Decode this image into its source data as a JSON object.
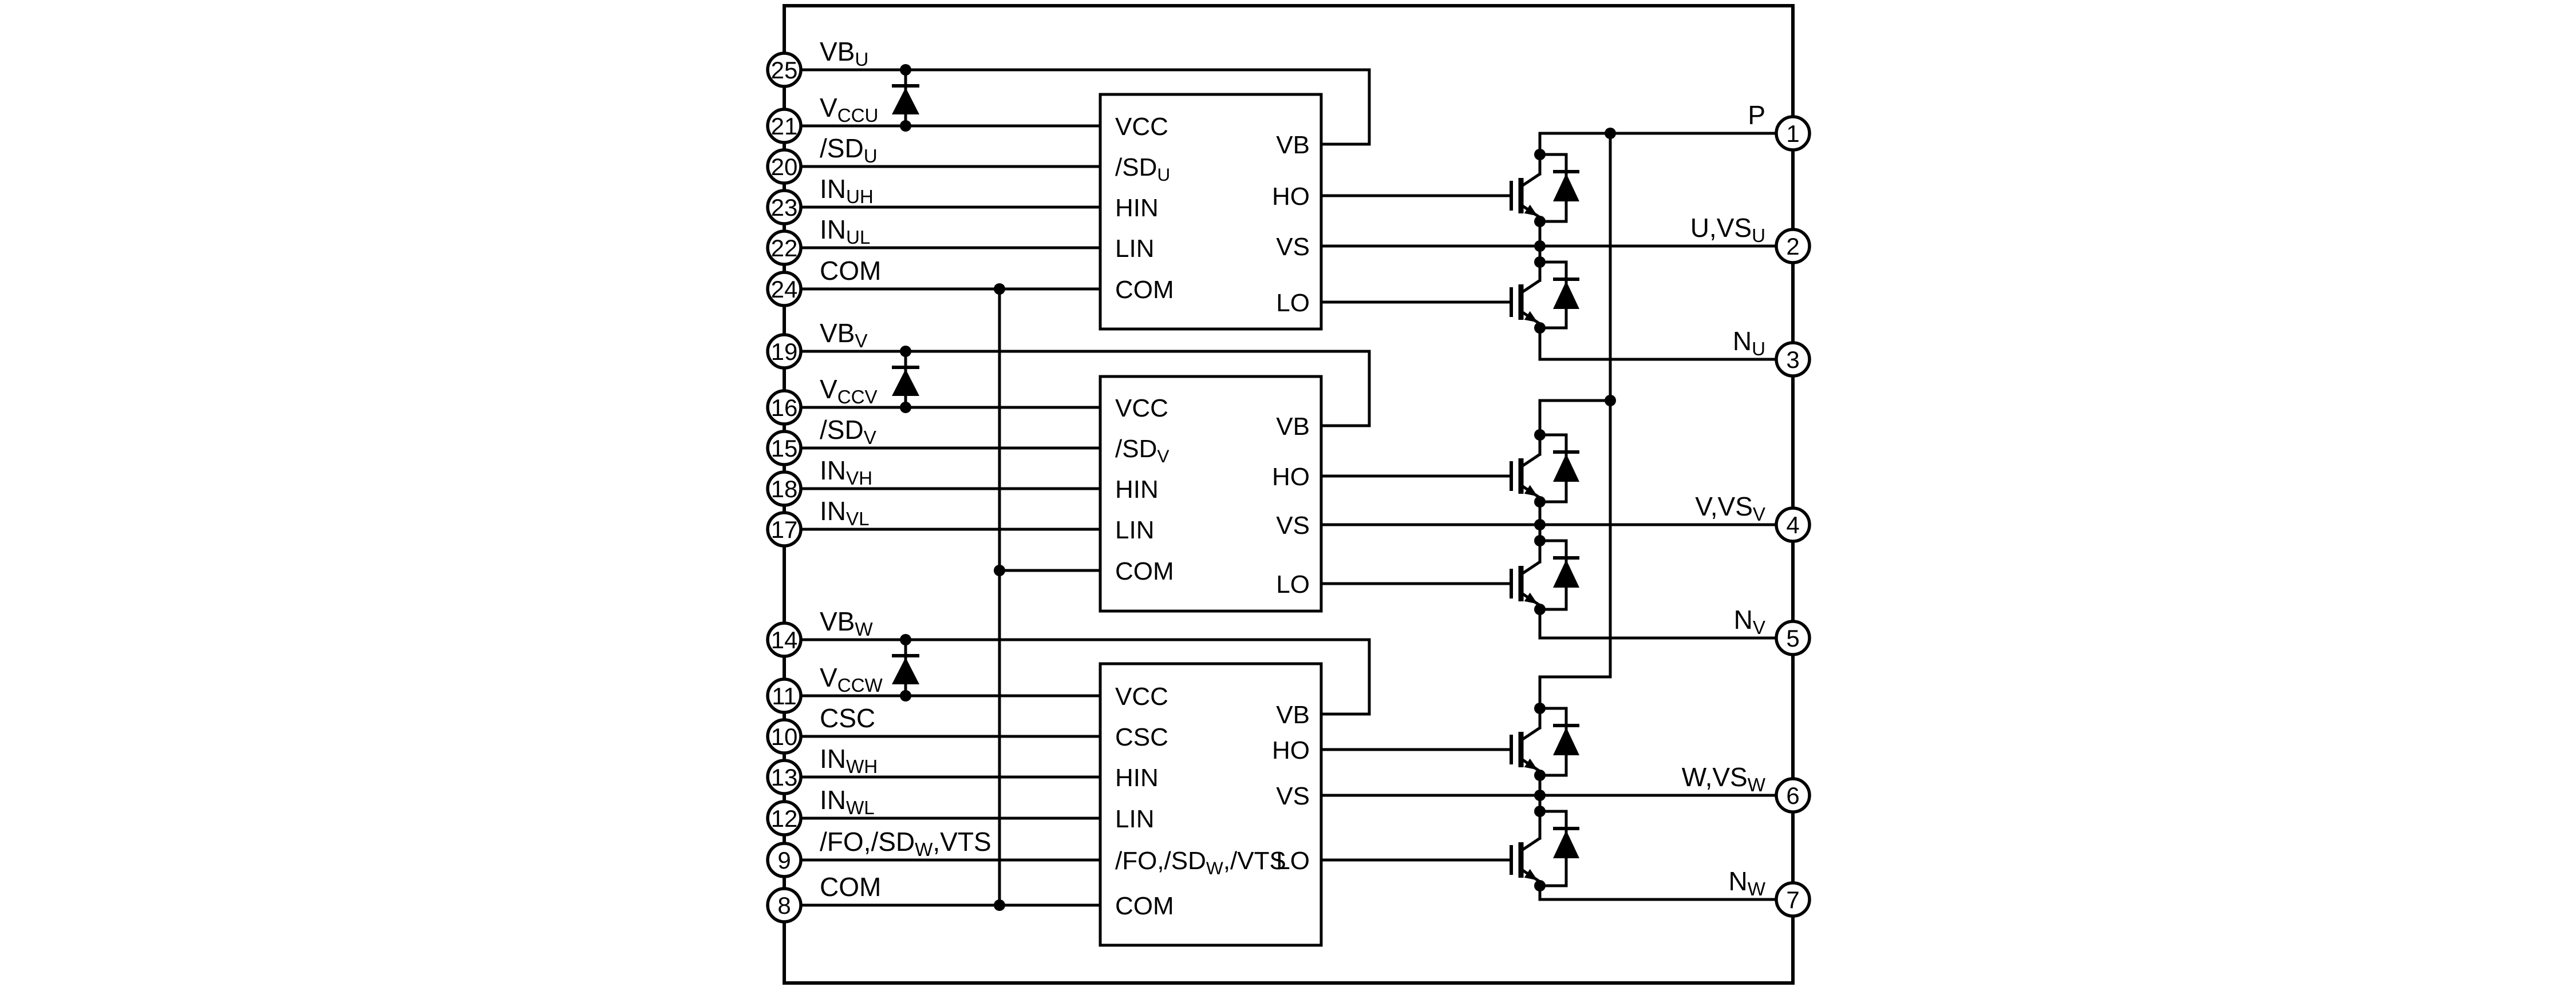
{
  "colors": {
    "background": "#ffffff",
    "line": "#000000"
  },
  "left_pins": [
    {
      "number": "25",
      "label": {
        "parts": [
          {
            "t": "VB"
          },
          {
            "t": "U",
            "sub": true
          }
        ]
      }
    },
    {
      "number": "21",
      "label": {
        "parts": [
          {
            "t": "V"
          },
          {
            "t": "CCU",
            "sub": true
          }
        ]
      }
    },
    {
      "number": "20",
      "label": {
        "parts": [
          {
            "t": "/SD"
          },
          {
            "t": "U",
            "sub": true
          }
        ]
      }
    },
    {
      "number": "23",
      "label": {
        "parts": [
          {
            "t": "IN"
          },
          {
            "t": "UH",
            "sub": true
          }
        ]
      }
    },
    {
      "number": "22",
      "label": {
        "parts": [
          {
            "t": "IN"
          },
          {
            "t": "UL",
            "sub": true
          }
        ]
      }
    },
    {
      "number": "24",
      "label": {
        "parts": [
          {
            "t": "COM"
          }
        ]
      }
    },
    {
      "number": "19",
      "label": {
        "parts": [
          {
            "t": "VB"
          },
          {
            "t": "V",
            "sub": true
          }
        ]
      }
    },
    {
      "number": "16",
      "label": {
        "parts": [
          {
            "t": "V"
          },
          {
            "t": "CCV",
            "sub": true
          }
        ]
      }
    },
    {
      "number": "15",
      "label": {
        "parts": [
          {
            "t": "/SD"
          },
          {
            "t": "V",
            "sub": true
          }
        ]
      }
    },
    {
      "number": "18",
      "label": {
        "parts": [
          {
            "t": "IN"
          },
          {
            "t": "VH",
            "sub": true
          }
        ]
      }
    },
    {
      "number": "17",
      "label": {
        "parts": [
          {
            "t": "IN"
          },
          {
            "t": "VL",
            "sub": true
          }
        ]
      }
    },
    {
      "number": "14",
      "label": {
        "parts": [
          {
            "t": "VB"
          },
          {
            "t": "W",
            "sub": true
          }
        ]
      }
    },
    {
      "number": "11",
      "label": {
        "parts": [
          {
            "t": "V"
          },
          {
            "t": "CCW",
            "sub": true
          }
        ]
      }
    },
    {
      "number": "10",
      "label": {
        "parts": [
          {
            "t": "CSC"
          }
        ]
      }
    },
    {
      "number": "13",
      "label": {
        "parts": [
          {
            "t": "IN"
          },
          {
            "t": "WH",
            "sub": true
          }
        ]
      }
    },
    {
      "number": "12",
      "label": {
        "parts": [
          {
            "t": "IN"
          },
          {
            "t": "WL",
            "sub": true
          }
        ]
      }
    },
    {
      "number": "9",
      "label": {
        "parts": [
          {
            "t": "/FO,/SD"
          },
          {
            "t": "W",
            "sub": true
          },
          {
            "t": ",VTS"
          }
        ]
      }
    },
    {
      "number": "8",
      "label": {
        "parts": [
          {
            "t": "COM"
          }
        ]
      }
    }
  ],
  "right_pins": [
    {
      "number": "1",
      "label": {
        "parts": [
          {
            "t": "P"
          }
        ]
      }
    },
    {
      "number": "2",
      "label": {
        "parts": [
          {
            "t": "U,VS"
          },
          {
            "t": "U",
            "sub": true
          }
        ]
      }
    },
    {
      "number": "3",
      "label": {
        "parts": [
          {
            "t": "N"
          },
          {
            "t": "U",
            "sub": true
          }
        ]
      }
    },
    {
      "number": "4",
      "label": {
        "parts": [
          {
            "t": "V,VS"
          },
          {
            "t": "V",
            "sub": true
          }
        ]
      }
    },
    {
      "number": "5",
      "label": {
        "parts": [
          {
            "t": "N"
          },
          {
            "t": "V",
            "sub": true
          }
        ]
      }
    },
    {
      "number": "6",
      "label": {
        "parts": [
          {
            "t": "W,VS"
          },
          {
            "t": "W",
            "sub": true
          }
        ]
      }
    },
    {
      "number": "7",
      "label": {
        "parts": [
          {
            "t": "N"
          },
          {
            "t": "W",
            "sub": true
          }
        ]
      }
    }
  ],
  "driver_ics": [
    {
      "left_pins": [
        {
          "parts": [
            {
              "t": "VCC"
            }
          ]
        },
        {
          "parts": [
            {
              "t": "/SD"
            },
            {
              "t": "U",
              "sub": true
            }
          ]
        },
        {
          "parts": [
            {
              "t": "HIN"
            }
          ]
        },
        {
          "parts": [
            {
              "t": "LIN"
            }
          ]
        },
        {
          "parts": [
            {
              "t": "COM"
            }
          ]
        }
      ],
      "right_pins": [
        "VB",
        "HO",
        "VS",
        "LO"
      ]
    },
    {
      "left_pins": [
        {
          "parts": [
            {
              "t": "VCC"
            }
          ]
        },
        {
          "parts": [
            {
              "t": "/SD"
            },
            {
              "t": "V",
              "sub": true
            }
          ]
        },
        {
          "parts": [
            {
              "t": "HIN"
            }
          ]
        },
        {
          "parts": [
            {
              "t": "LIN"
            }
          ]
        },
        {
          "parts": [
            {
              "t": "COM"
            }
          ]
        }
      ],
      "right_pins": [
        "VB",
        "HO",
        "VS",
        "LO"
      ]
    },
    {
      "left_pins": [
        {
          "parts": [
            {
              "t": "VCC"
            }
          ]
        },
        {
          "parts": [
            {
              "t": "CSC"
            }
          ]
        },
        {
          "parts": [
            {
              "t": "HIN"
            }
          ]
        },
        {
          "parts": [
            {
              "t": "LIN"
            }
          ]
        },
        {
          "parts": [
            {
              "t": "/FO,/SD"
            },
            {
              "t": "W",
              "sub": true
            },
            {
              "t": ",/VTS"
            }
          ]
        },
        {
          "parts": [
            {
              "t": "COM"
            }
          ]
        }
      ],
      "right_pins": [
        "VB",
        "HO",
        "VS",
        "LO"
      ]
    }
  ]
}
